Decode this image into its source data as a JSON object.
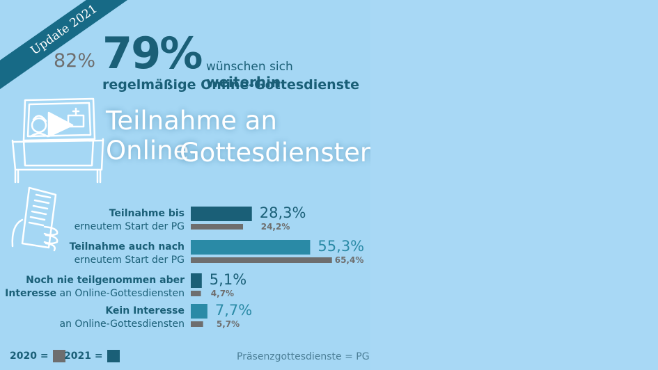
{
  "badge": "Update 2021",
  "headline": {
    "pct_2020": "82%",
    "pct_2021": "79%",
    "line1_regular": "wünschen sich",
    "line1_bold": "weiterhin",
    "line2": "regelmäßige Online-Gottesdienste"
  },
  "title": {
    "line1": "Teilnahme an Online-",
    "line2": "Gottesdiensten"
  },
  "colors": {
    "color_2020": "#6e6e6e",
    "color_2021": "#1a5f77",
    "accent_2021_light": "#2a8aa6"
  },
  "chart_data": {
    "type": "bar",
    "orientation": "horizontal",
    "categories": [
      {
        "bold": "Teilnahme bis",
        "bold2": "",
        "regular": "erneutem Start der PG"
      },
      {
        "bold": "Teilnahme auch nach",
        "bold2": "",
        "regular": "erneutem Start der PG"
      },
      {
        "bold": "Noch nie teilgenommen aber",
        "bold2": "Interesse",
        "regular": "an Online-Gottesdiensten"
      },
      {
        "bold": "Kein Interesse",
        "bold2": "",
        "regular": "an Online-Gottesdiensten"
      }
    ],
    "series": [
      {
        "name": "2021",
        "values": [
          28.3,
          55.3,
          5.1,
          7.7
        ],
        "labels": [
          "28,3%",
          "55,3%",
          "5,1%",
          "7,7%"
        ]
      },
      {
        "name": "2020",
        "values": [
          24.2,
          65.4,
          4.7,
          5.7
        ],
        "labels": [
          "24,2%",
          "65,4%",
          "4,7%",
          "5,7%"
        ]
      }
    ],
    "legend": [
      {
        "label": "2020 =",
        "series": "2020"
      },
      {
        "label": "2021 =",
        "series": "2021"
      }
    ]
  },
  "footnote": "Präsenzgottesdienste = PG"
}
